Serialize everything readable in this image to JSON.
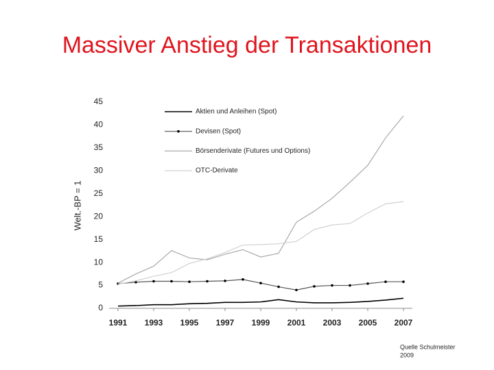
{
  "chart_data": {
    "type": "line",
    "title": "Massiver Anstieg der Transaktionen",
    "y_label": "Welt.-BP = 1",
    "source": [
      "Quelle Schulmeister",
      "2009"
    ],
    "x": [
      1991,
      1992,
      1993,
      1994,
      1995,
      1996,
      1997,
      1998,
      1999,
      2000,
      2001,
      2002,
      2003,
      2004,
      2005,
      2006,
      2007
    ],
    "xlim": [
      1990.5,
      2007.5
    ],
    "xticks": [
      1991,
      1993,
      1995,
      1997,
      1999,
      2001,
      2003,
      2005,
      2007
    ],
    "ylim": [
      0,
      45
    ],
    "yticks": [
      0,
      5,
      10,
      15,
      20,
      25,
      30,
      35,
      40,
      45
    ],
    "grid": false,
    "series": [
      {
        "name": "Aktien und Anleihen (Spot)",
        "color": "#000000",
        "marker": false,
        "values": [
          0.5,
          0.6,
          0.8,
          0.8,
          1.0,
          1.1,
          1.3,
          1.3,
          1.4,
          1.9,
          1.4,
          1.2,
          1.2,
          1.3,
          1.5,
          1.8,
          2.2
        ]
      },
      {
        "name": "Devisen (Spot)",
        "color": "#555555",
        "marker": true,
        "values": [
          5.4,
          5.7,
          5.9,
          5.9,
          5.8,
          5.9,
          6.0,
          6.3,
          5.5,
          4.7,
          4.0,
          4.8,
          5.0,
          5.0,
          5.4,
          5.8,
          5.8
        ]
      },
      {
        "name": "Börsenderivate (Futures und Options)",
        "color": "#a8a8a8",
        "marker": false,
        "values": [
          5.5,
          7.5,
          9.2,
          12.6,
          11.0,
          10.6,
          11.8,
          12.8,
          11.2,
          12.0,
          18.8,
          21.2,
          24.0,
          27.5,
          31.2,
          37.2,
          42.0
        ]
      },
      {
        "name": "OTC-Derivate",
        "color": "#d0d0d0",
        "marker": false,
        "values": [
          5.3,
          6.0,
          7.0,
          7.8,
          9.8,
          10.8,
          12.2,
          13.8,
          13.9,
          14.1,
          14.6,
          17.2,
          18.2,
          18.5,
          20.8,
          22.8,
          23.3
        ]
      }
    ]
  }
}
